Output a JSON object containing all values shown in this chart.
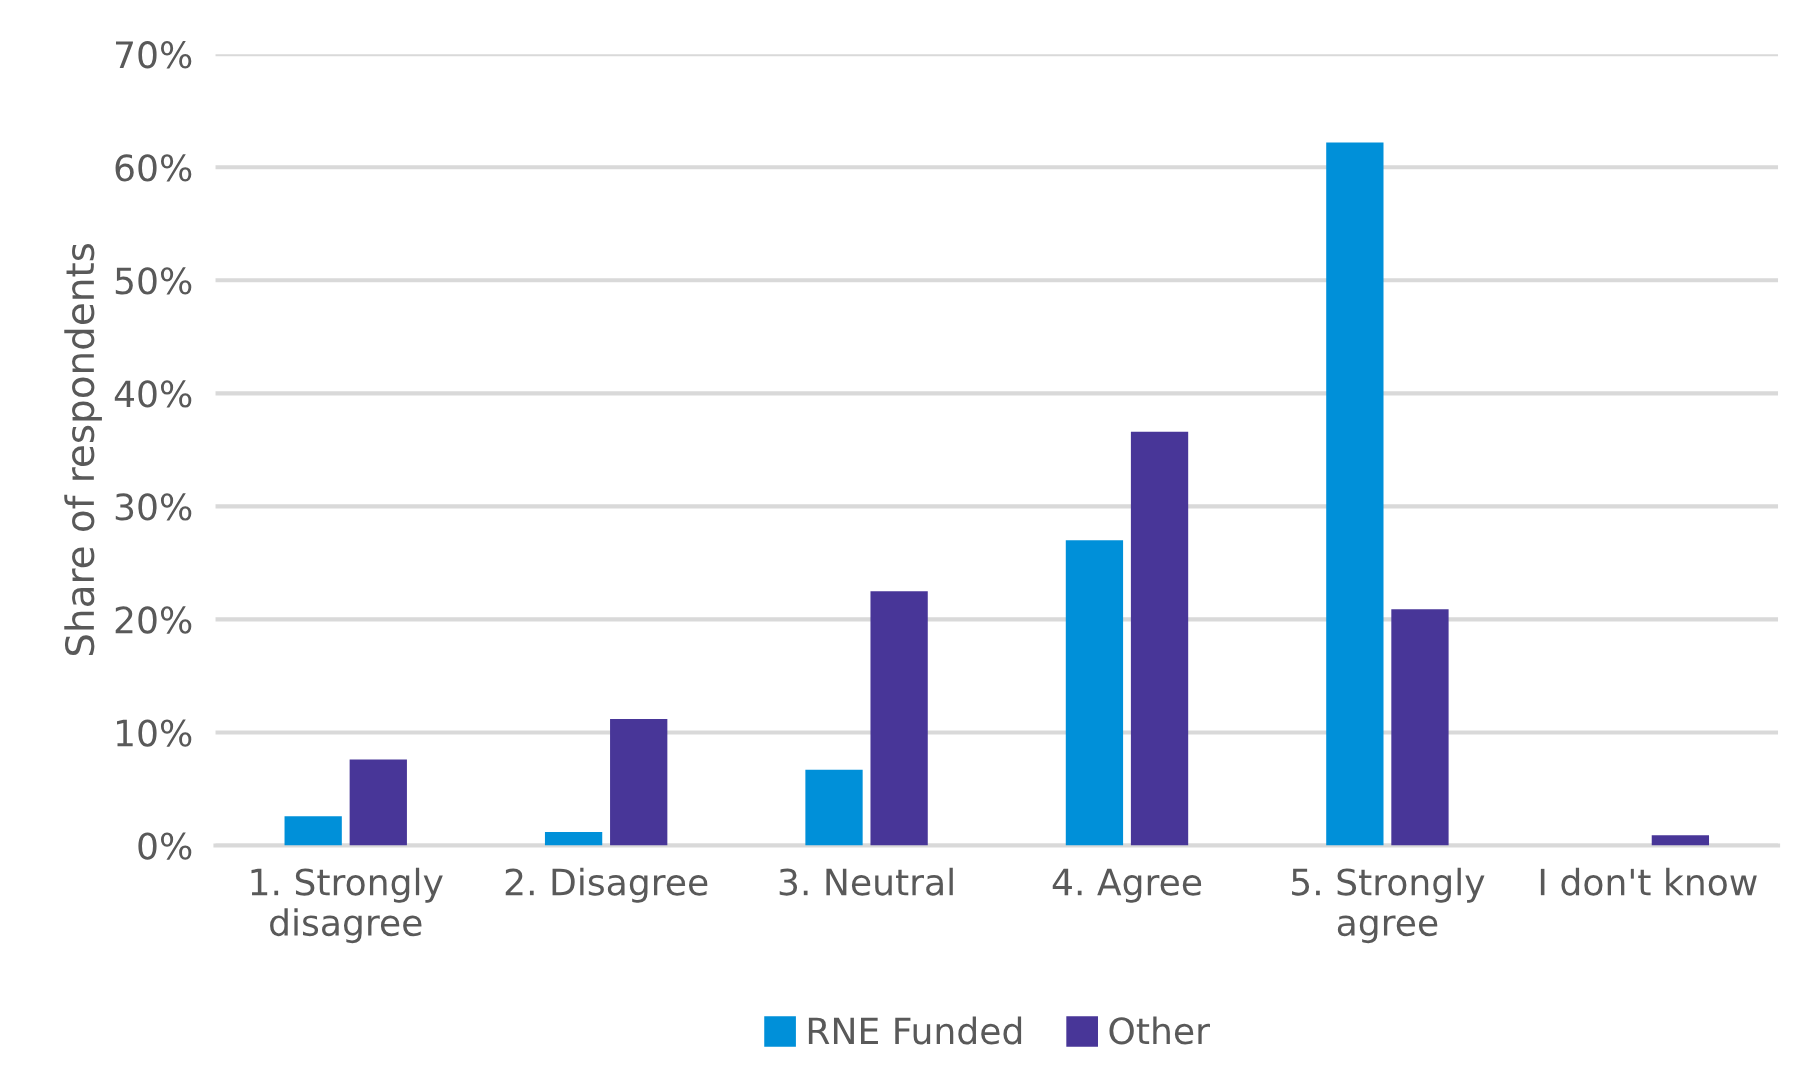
{
  "chart_data": {
    "type": "bar",
    "ylabel": "Share of respondents",
    "categories": [
      "1. Strongly\ndisagree",
      "2. Disagree",
      "3. Neutral",
      "4. Agree",
      "5. Strongly\nagree",
      "I don't know"
    ],
    "series": [
      {
        "name": "RNE Funded",
        "color": "#0090d9",
        "values": [
          2.6,
          1.2,
          6.7,
          27.0,
          62.2,
          0
        ]
      },
      {
        "name": "Other",
        "color": "#483698",
        "values": [
          7.6,
          11.2,
          22.5,
          36.6,
          20.9,
          0.9
        ]
      }
    ],
    "ylim": [
      0,
      70
    ],
    "yticks": [
      {
        "value": 0,
        "label": "0%"
      },
      {
        "value": 10,
        "label": "10%"
      },
      {
        "value": 20,
        "label": "20%"
      },
      {
        "value": 30,
        "label": "30%"
      },
      {
        "value": 40,
        "label": "40%"
      },
      {
        "value": 50,
        "label": "50%"
      },
      {
        "value": 60,
        "label": "60%"
      },
      {
        "value": 70,
        "label": "70%"
      }
    ],
    "grid": "y",
    "legend": "bottom"
  }
}
